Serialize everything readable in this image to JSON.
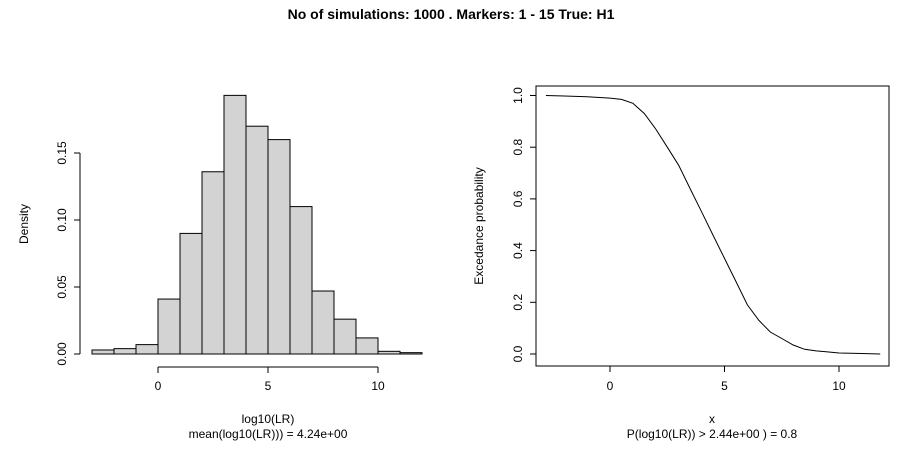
{
  "figure_title": "No of simulations:  1000 . Markers: 1 -  15  True:  H1",
  "chart_data": [
    {
      "type": "bar",
      "subtype": "histogram",
      "title": "",
      "xlabel": "log10(LR)",
      "subtitle": "mean(log10(LR))) =  4.24e+00",
      "ylabel": "Density",
      "xlim": [
        -3,
        12
      ],
      "ylim": [
        0,
        0.19
      ],
      "xticks": [
        0,
        5,
        10
      ],
      "xtick_labels": [
        "0",
        "5",
        "10"
      ],
      "yticks": [
        0,
        0.05,
        0.1,
        0.15
      ],
      "ytick_labels": [
        "0.00",
        "0.05",
        "0.10",
        "0.15"
      ],
      "bins": [
        {
          "x0": -3,
          "x1": -2,
          "value": 0.003
        },
        {
          "x0": -2,
          "x1": -1,
          "value": 0.004
        },
        {
          "x0": -1,
          "x1": 0,
          "value": 0.007
        },
        {
          "x0": 0,
          "x1": 1,
          "value": 0.041
        },
        {
          "x0": 1,
          "x1": 2,
          "value": 0.09
        },
        {
          "x0": 2,
          "x1": 3,
          "value": 0.136
        },
        {
          "x0": 3,
          "x1": 4,
          "value": 0.193
        },
        {
          "x0": 4,
          "x1": 5,
          "value": 0.17
        },
        {
          "x0": 5,
          "x1": 6,
          "value": 0.16
        },
        {
          "x0": 6,
          "x1": 7,
          "value": 0.11
        },
        {
          "x0": 7,
          "x1": 8,
          "value": 0.047
        },
        {
          "x0": 8,
          "x1": 9,
          "value": 0.026
        },
        {
          "x0": 9,
          "x1": 10,
          "value": 0.012
        },
        {
          "x0": 10,
          "x1": 11,
          "value": 0.002
        },
        {
          "x0": 11,
          "x1": 12,
          "value": 0.001
        }
      ],
      "bar_fill": "#d3d3d3",
      "bar_stroke": "#000000"
    },
    {
      "type": "line",
      "title": "",
      "xlabel": "x",
      "subtitle": "P(log10(LR)) >  2.44e+00 ) = 0.8",
      "ylabel": "Excedance probability",
      "xlim": [
        -3,
        12
      ],
      "ylim": [
        0,
        1
      ],
      "xticks": [
        0,
        5,
        10
      ],
      "xtick_labels": [
        "0",
        "5",
        "10"
      ],
      "yticks": [
        0,
        0.2,
        0.4,
        0.6,
        0.8,
        1.0
      ],
      "ytick_labels": [
        "0.0",
        "0.2",
        "0.4",
        "0.6",
        "0.8",
        "1.0"
      ],
      "box": true,
      "series": [
        {
          "x": [
            -2.8,
            -2,
            -1,
            0,
            0.5,
            1,
            1.5,
            2,
            2.5,
            3,
            3.5,
            4,
            4.5,
            5,
            5.5,
            6,
            6.5,
            7,
            7.5,
            8,
            8.5,
            9,
            9.5,
            10,
            11,
            11.8
          ],
          "y": [
            1.0,
            0.998,
            0.995,
            0.99,
            0.985,
            0.97,
            0.93,
            0.87,
            0.8,
            0.73,
            0.64,
            0.55,
            0.46,
            0.37,
            0.28,
            0.19,
            0.13,
            0.085,
            0.06,
            0.035,
            0.018,
            0.012,
            0.008,
            0.004,
            0.002,
            0.0
          ],
          "color": "#000000"
        }
      ]
    }
  ]
}
